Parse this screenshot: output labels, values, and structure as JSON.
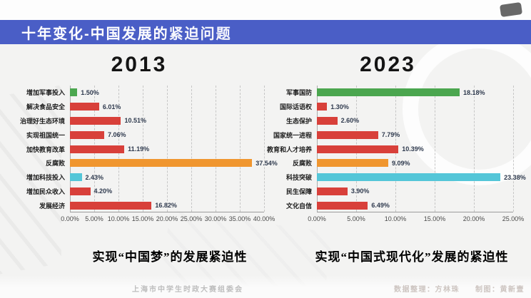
{
  "page": {
    "banner": {
      "title_main": "十年变化-中国发展的",
      "title_highlight": "紧迫问题"
    },
    "banner_color": "#4a5ec6",
    "background_color": "#f3f3f2"
  },
  "chart_data": [
    {
      "type": "bar",
      "orientation": "horizontal",
      "title": "2013",
      "categories": [
        "增加军事投入",
        "解决食品安全",
        "治理好生态环境",
        "实现祖国统一",
        "加快教育改革",
        "反腐败",
        "增加科技投入",
        "增加民众收入",
        "发展经济"
      ],
      "values": [
        1.5,
        6.01,
        10.51,
        7.06,
        11.19,
        37.54,
        2.43,
        4.2,
        16.82
      ],
      "value_labels": [
        "1.50%",
        "6.01%",
        "10.51%",
        "7.06%",
        "11.19%",
        "37.54%",
        "2.43%",
        "4.20%",
        "16.82%"
      ],
      "bar_colors": [
        "#4ba64f",
        "#d8403a",
        "#d8403a",
        "#d8403a",
        "#d8403a",
        "#f0962f",
        "#54c6d8",
        "#d8403a",
        "#d8403a"
      ],
      "xlim": [
        0,
        40
      ],
      "xticks": [
        "0.00%",
        "5.00%",
        "10.00%",
        "15.00%",
        "20.00%",
        "25.00%",
        "30.00%",
        "35.00%",
        "40.00%"
      ],
      "grid": "vertical-dashed",
      "legend": "none"
    },
    {
      "type": "bar",
      "orientation": "horizontal",
      "title": "2023",
      "categories": [
        "军事国防",
        "国际话语权",
        "生态保护",
        "国家统一进程",
        "教育和人才培养",
        "反腐败",
        "科技突破",
        "民生保障",
        "文化自信"
      ],
      "values": [
        18.18,
        1.3,
        2.6,
        7.79,
        10.39,
        9.09,
        23.38,
        3.9,
        6.49
      ],
      "value_labels": [
        "18.18%",
        "1.30%",
        "2.60%",
        "7.79%",
        "10.39%",
        "9.09%",
        "23.38%",
        "3.90%",
        "6.49%"
      ],
      "bar_colors": [
        "#4ba64f",
        "#d8403a",
        "#d8403a",
        "#d8403a",
        "#d8403a",
        "#f0962f",
        "#54c6d8",
        "#d8403a",
        "#d8403a"
      ],
      "xlim": [
        0,
        25
      ],
      "xticks": [
        "0.00%",
        "5.00%",
        "10.00%",
        "15.00%",
        "20.00%",
        "25.00%"
      ],
      "grid": "vertical-dashed",
      "legend": "none"
    }
  ],
  "captions": [
    {
      "pre": "实现“",
      "strong": "中国",
      "post": "梦”的发展紧迫性"
    },
    {
      "pre": "实现“",
      "strong": "中国",
      "post": "式现代化”发展的紧迫性"
    }
  ],
  "footer": {
    "organizer": "上海市中学生时政大赛组委会",
    "credit_data": "数据整理：方林珠",
    "credit_design": "制图：黄新壹"
  },
  "palette": {
    "green": "#4ba64f",
    "red": "#d8403a",
    "orange": "#f0962f",
    "cyan": "#54c6d8"
  }
}
